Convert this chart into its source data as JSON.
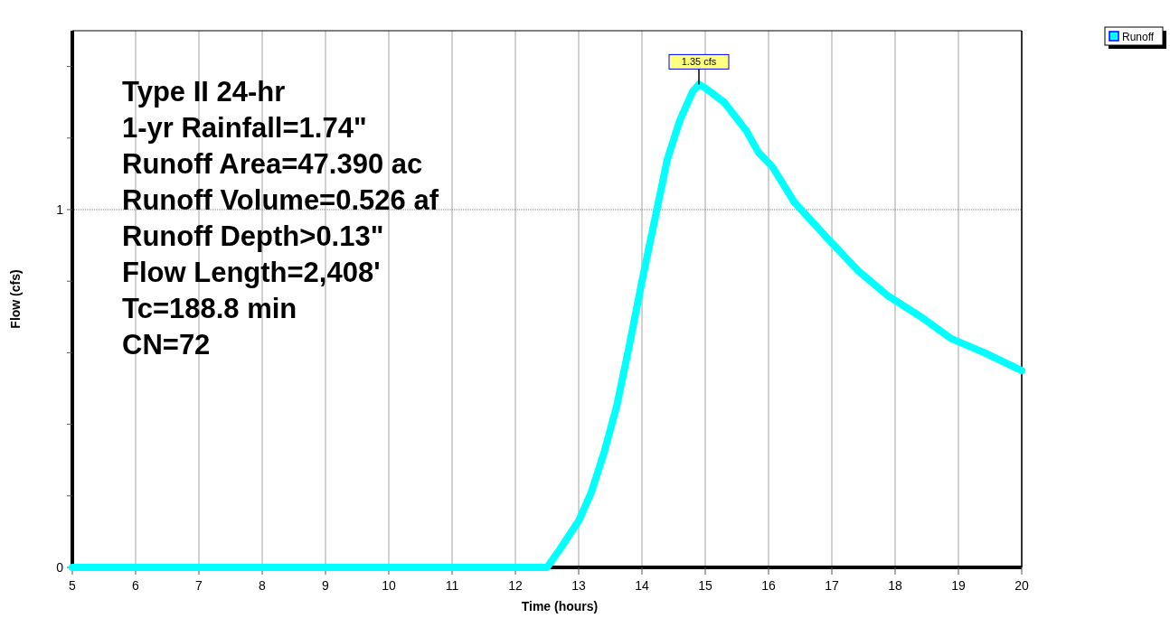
{
  "chart_data": {
    "type": "line",
    "xlabel": "Time  (hours)",
    "ylabel": "Flow  (cfs)",
    "xlim": [
      5,
      20
    ],
    "xticks": [
      5,
      6,
      7,
      8,
      9,
      10,
      11,
      12,
      13,
      14,
      15,
      16,
      17,
      18,
      19,
      20
    ],
    "ylim": [
      0,
      1.5
    ],
    "yticks": [
      0,
      {
        "value": 0.2,
        "label": null
      },
      {
        "value": 0.4,
        "label": null
      },
      {
        "value": 0.6,
        "label": null
      },
      {
        "value": 0.8,
        "label": null
      },
      1,
      {
        "value": 1.2,
        "label": null
      },
      {
        "value": 1.4,
        "label": null
      }
    ],
    "grid": "x",
    "legend": "top right",
    "ref_lines": [
      {
        "axis": "y",
        "value": 1,
        "line_style": "dotted"
      }
    ],
    "series": [
      {
        "name": "Runoff",
        "color": "#00ffff",
        "x": [
          5,
          12.3,
          12.5,
          12.7,
          13.0,
          13.2,
          13.4,
          13.6,
          13.8,
          14.0,
          14.2,
          14.4,
          14.6,
          14.8,
          14.9,
          15.0,
          15.3,
          15.65,
          15.84,
          16.06,
          16.41,
          16.93,
          17.41,
          17.88,
          18.41,
          18.88,
          19.41,
          20
        ],
        "values": [
          0,
          0,
          0,
          0.05,
          0.13,
          0.21,
          0.32,
          0.45,
          0.62,
          0.8,
          0.97,
          1.14,
          1.25,
          1.33,
          1.35,
          1.34,
          1.3,
          1.22,
          1.16,
          1.12,
          1.02,
          0.92,
          0.83,
          0.76,
          0.7,
          0.64,
          0.6,
          0.55
        ]
      }
    ],
    "annotations": [
      {
        "text": "1.35 cfs",
        "x": 14.9,
        "y": 1.35
      },
      "Type II 24-hr",
      "1-yr Rainfall=1.74\"",
      "Runoff Area=47.390 ac",
      "Runoff Volume=0.526 af",
      "Runoff Depth>0.13\"",
      "Flow Length=2,408'",
      "Tc=188.8 min",
      "CN=72"
    ]
  }
}
